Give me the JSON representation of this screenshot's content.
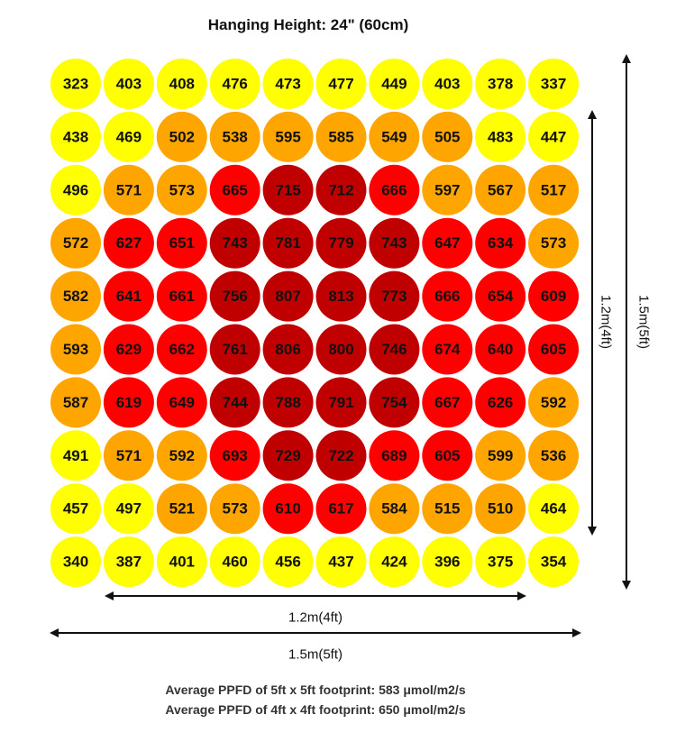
{
  "chart_data": {
    "type": "heatmap",
    "title": "Hanging Height: 24\" (60cm)",
    "grid": [
      [
        323,
        403,
        408,
        476,
        473,
        477,
        449,
        403,
        378,
        337
      ],
      [
        438,
        469,
        502,
        538,
        595,
        585,
        549,
        505,
        483,
        447
      ],
      [
        496,
        571,
        573,
        665,
        715,
        712,
        666,
        597,
        567,
        517
      ],
      [
        572,
        627,
        651,
        743,
        781,
        779,
        743,
        647,
        634,
        573
      ],
      [
        582,
        641,
        661,
        756,
        807,
        813,
        773,
        666,
        654,
        609
      ],
      [
        593,
        629,
        662,
        761,
        806,
        800,
        746,
        674,
        640,
        605
      ],
      [
        587,
        619,
        649,
        744,
        788,
        791,
        754,
        667,
        626,
        592
      ],
      [
        491,
        571,
        592,
        693,
        729,
        722,
        689,
        605,
        599,
        536
      ],
      [
        457,
        497,
        521,
        573,
        610,
        617,
        584,
        515,
        510,
        464
      ],
      [
        340,
        387,
        401,
        460,
        456,
        437,
        424,
        396,
        375,
        354
      ]
    ],
    "color_levels": [
      {
        "min": 0,
        "max": 499,
        "color": "#ffff00"
      },
      {
        "min": 500,
        "max": 599,
        "color": "#ffa500"
      },
      {
        "min": 600,
        "max": 699,
        "color": "#ff0000"
      },
      {
        "min": 700,
        "max": 9999,
        "color": "#c00000"
      }
    ],
    "dimensions": {
      "inner_horizontal": "1.2m(4ft)",
      "outer_horizontal": "1.5m(5ft)",
      "inner_vertical": "1.2m(4ft)",
      "outer_vertical": "1.5m(5ft)"
    },
    "notes": [
      "Average PPFD of 5ft x 5ft footprint: 583 μmol/m2/s",
      "Average PPFD of 4ft x 4ft footprint: 650 μmol/m2/s"
    ]
  }
}
